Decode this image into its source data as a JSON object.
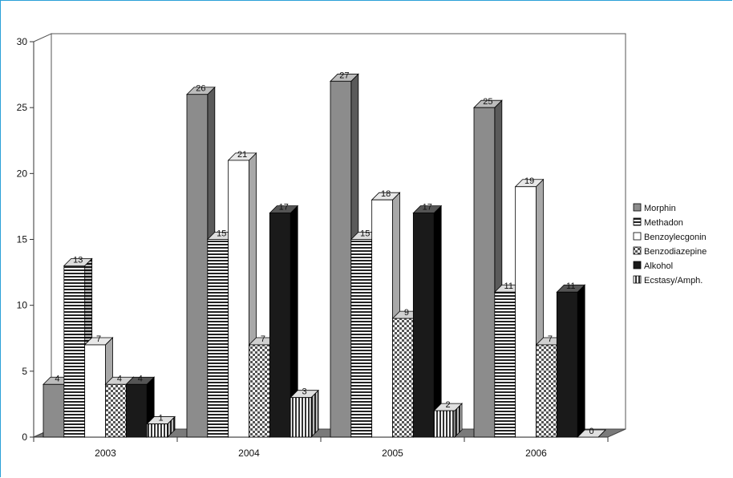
{
  "chart_data": {
    "type": "bar",
    "categories": [
      "2003",
      "2004",
      "2005",
      "2006"
    ],
    "series": [
      {
        "name": "Morphin",
        "values": [
          4,
          26,
          27,
          25
        ],
        "pattern": "gray"
      },
      {
        "name": "Methadon",
        "values": [
          13,
          15,
          15,
          11
        ],
        "pattern": "hstripes"
      },
      {
        "name": "Benzoylecgonin",
        "values": [
          7,
          21,
          18,
          19
        ],
        "pattern": "white"
      },
      {
        "name": "Benzodiazepine",
        "values": [
          4,
          7,
          9,
          7
        ],
        "pattern": "checker"
      },
      {
        "name": "Alkohol",
        "values": [
          4,
          17,
          17,
          11
        ],
        "pattern": "black"
      },
      {
        "name": "Ecstasy/Amph.",
        "values": [
          1,
          3,
          2,
          0
        ],
        "pattern": "vstripes"
      }
    ],
    "ylim": [
      0,
      30
    ],
    "yticks": [
      0,
      5,
      10,
      15,
      20,
      25,
      30
    ],
    "data_labels": [
      [
        "4",
        "26",
        "27",
        "25"
      ],
      [
        "13",
        "15",
        "15",
        "11"
      ],
      [
        "7",
        "21",
        "18",
        "19"
      ],
      [
        "4",
        "7",
        "9",
        "7"
      ],
      [
        "4",
        "17",
        "17",
        "11"
      ],
      [
        "1",
        "3",
        "2",
        "0"
      ]
    ],
    "legend_position": "right",
    "style": "3d",
    "colors": {
      "gray": "#8c8c8c",
      "black": "#1a1a1a",
      "white": "#ffffff",
      "floor": "#7a7a7a",
      "frame": "#2aa0d8"
    }
  }
}
